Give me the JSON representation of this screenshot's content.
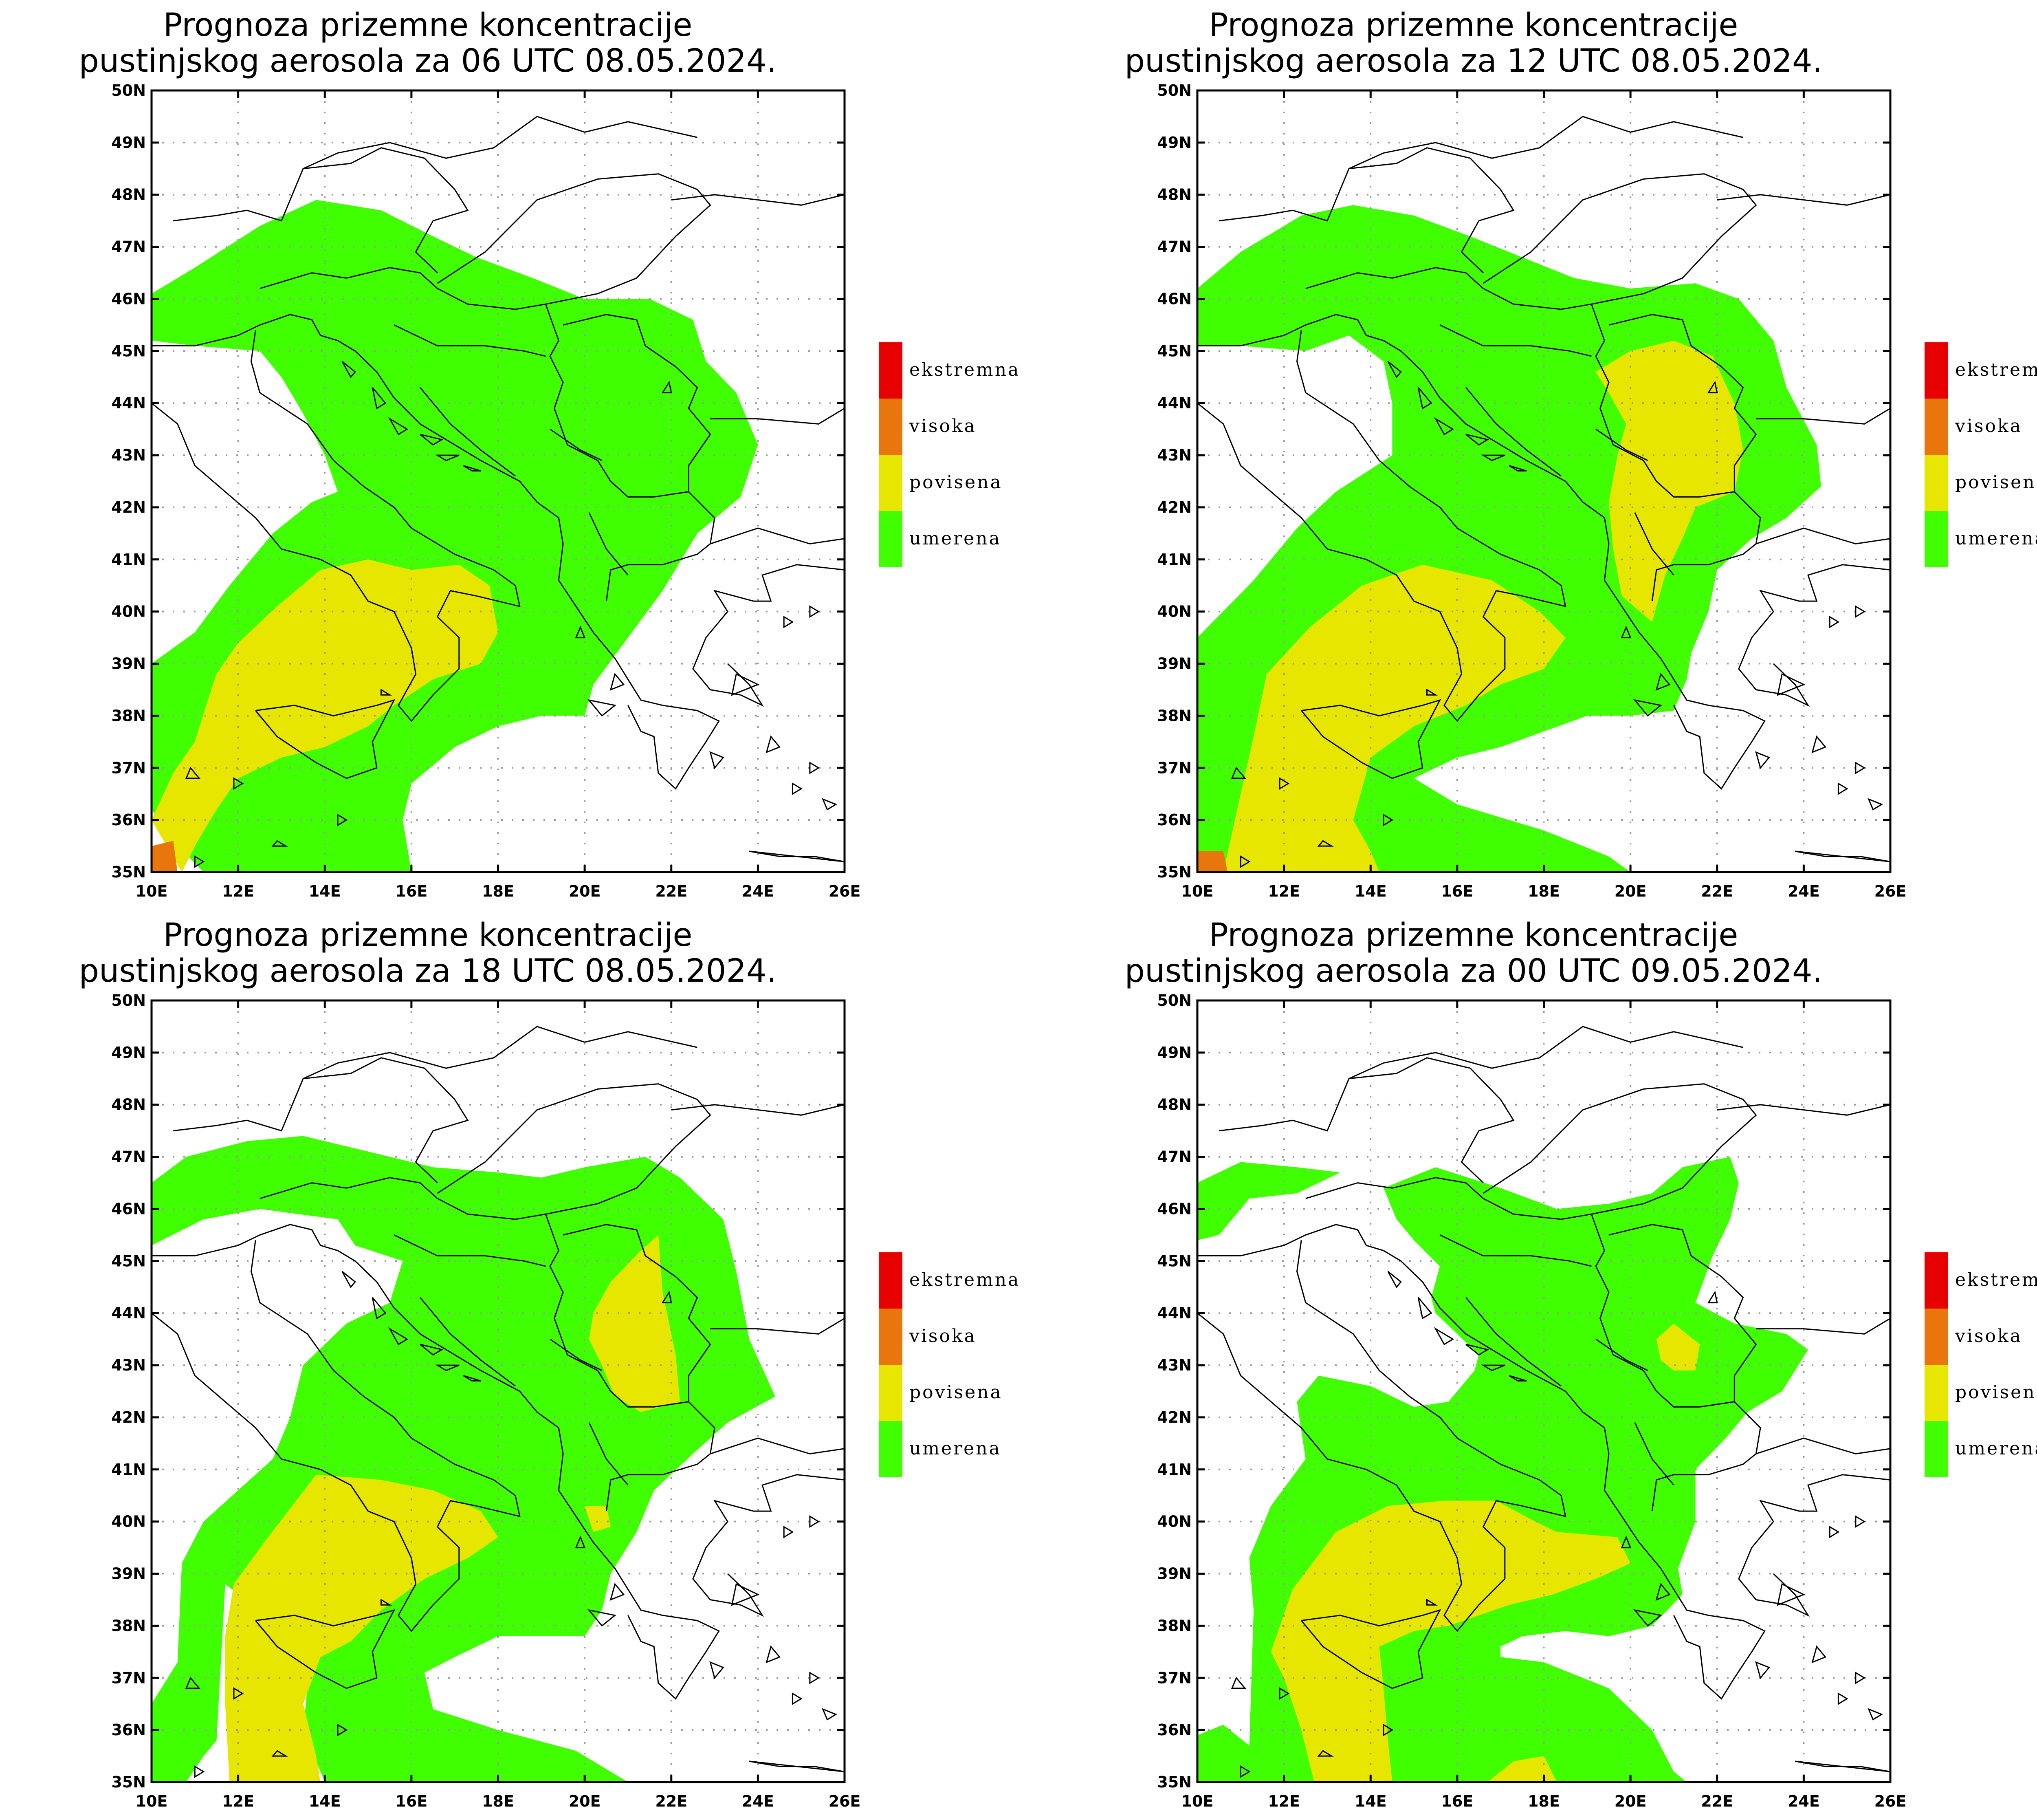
{
  "colors": {
    "ekstremna": "#e60000",
    "visoka": "#e8760c",
    "povisena": "#e6e600",
    "umerena": "#40ff00",
    "border": "#000000",
    "grid": "#999999"
  },
  "legend": [
    {
      "key": "ekstremna",
      "label": "ekstremna"
    },
    {
      "key": "visoka",
      "label": "visoka"
    },
    {
      "key": "povisena",
      "label": "povisena"
    },
    {
      "key": "umerena",
      "label": "umerena"
    }
  ],
  "axes": {
    "lon_labels": [
      "10E",
      "12E",
      "14E",
      "16E",
      "18E",
      "20E",
      "22E",
      "24E",
      "26E"
    ],
    "lat_labels": [
      "35N",
      "36N",
      "37N",
      "38N",
      "39N",
      "40N",
      "41N",
      "42N",
      "43N",
      "44N",
      "45N",
      "46N",
      "47N",
      "48N",
      "49N",
      "50N"
    ],
    "lon_range": [
      10,
      26
    ],
    "lat_range": [
      35,
      50
    ]
  },
  "panels": [
    {
      "title_line1": "Prognoza prizemne koncentracije",
      "title_line2": "pustinjskog aerosola za 06 UTC 08.05.2024."
    },
    {
      "title_line1": "Prognoza prizemne koncentracije",
      "title_line2": "pustinjskog aerosola za 12 UTC 08.05.2024."
    },
    {
      "title_line1": "Prognoza prizemne koncentracije",
      "title_line2": "pustinjskog aerosola za 18 UTC 08.05.2024."
    },
    {
      "title_line1": "Prognoza prizemne koncentracije",
      "title_line2": "pustinjskog aerosola za 00 UTC 09.05.2024."
    }
  ]
}
